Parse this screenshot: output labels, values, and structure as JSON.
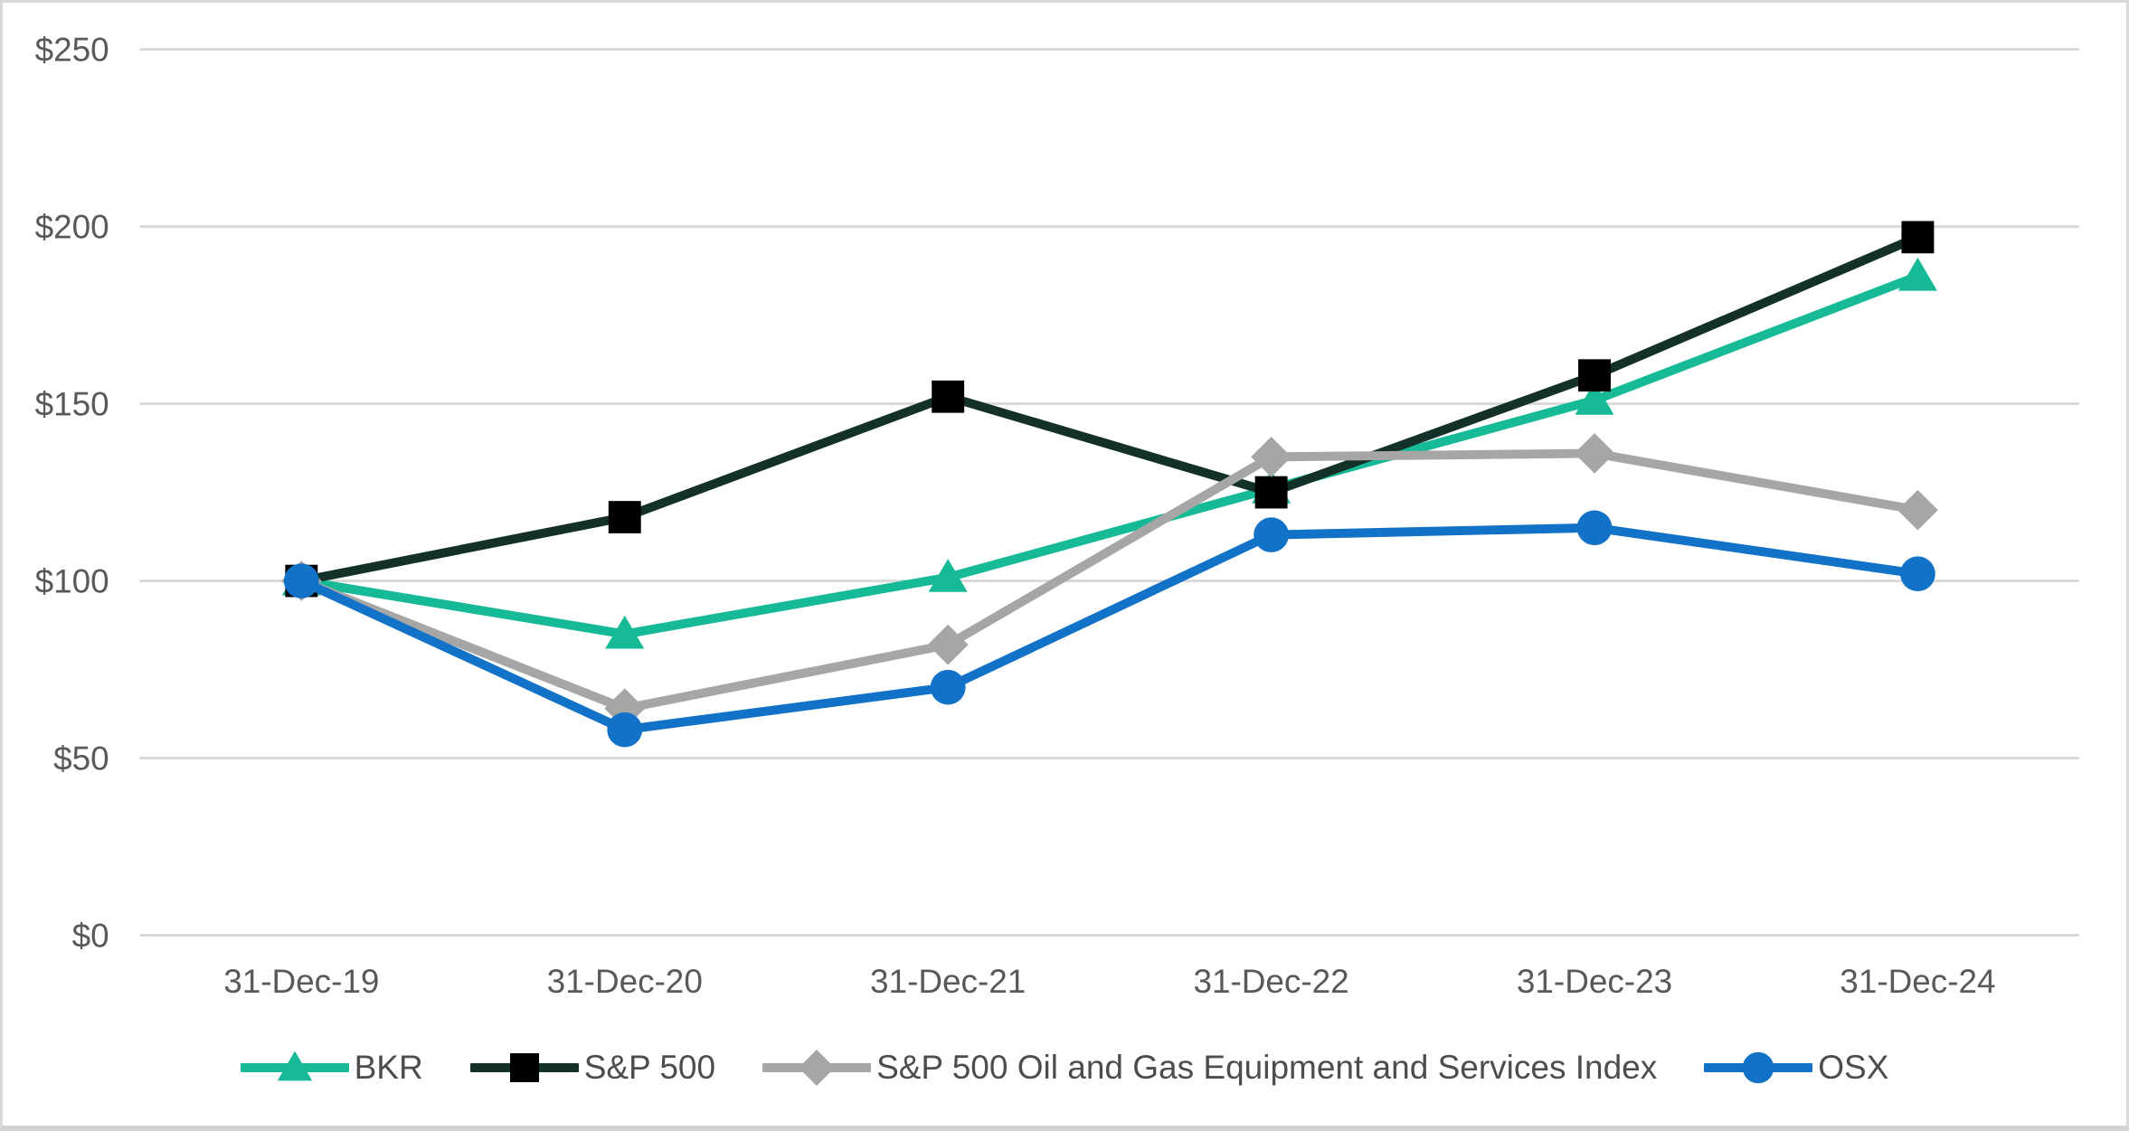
{
  "chart_data": {
    "type": "line",
    "title": "",
    "xlabel": "",
    "ylabel": "",
    "categories": [
      "31-Dec-19",
      "31-Dec-20",
      "31-Dec-21",
      "31-Dec-22",
      "31-Dec-23",
      "31-Dec-24"
    ],
    "series": [
      {
        "name": "BKR",
        "marker": "triangle",
        "color": "#17BA97",
        "marker_color": "#17BA97",
        "values": [
          100,
          85,
          101,
          126,
          151,
          186
        ]
      },
      {
        "name": "S&P 500",
        "marker": "square",
        "color": "#143129",
        "marker_color": "#000000",
        "values": [
          100,
          118,
          152,
          125,
          158,
          197
        ]
      },
      {
        "name": "S&P 500 Oil and Gas Equipment and Services Index",
        "marker": "diamond",
        "color": "#A6A6A6",
        "marker_color": "#A6A6A6",
        "values": [
          100,
          64,
          82,
          135,
          136,
          120
        ]
      },
      {
        "name": "OSX",
        "marker": "circle",
        "color": "#1172C7",
        "marker_color": "#1172C7",
        "values": [
          100,
          58,
          70,
          113,
          115,
          102
        ]
      }
    ],
    "ylim": [
      0,
      250
    ],
    "yticks": {
      "values": [
        0,
        50,
        100,
        150,
        200,
        250
      ],
      "labels": [
        "$0",
        "$50",
        "$100",
        "$150",
        "$200",
        "$250"
      ]
    },
    "grid": "horizontal",
    "legend_position": "bottom",
    "colors": {
      "gridline": "#D9D9D9",
      "axis_text": "#595959",
      "border": "#D9D9D9",
      "background": "#FFFFFF"
    }
  }
}
